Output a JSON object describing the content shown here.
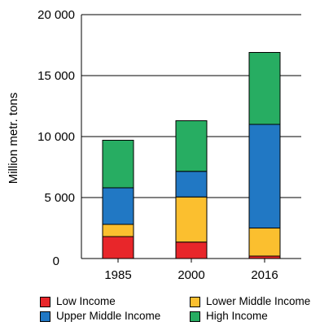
{
  "chart_data": {
    "type": "bar",
    "stacked": true,
    "categories": [
      "1985",
      "2000",
      "2016"
    ],
    "ylabel": "Million metr. tons",
    "ylim": [
      0,
      20000
    ],
    "yticks": [
      0,
      5000,
      10000,
      15000,
      20000
    ],
    "ytick_labels": [
      "0",
      "5 000",
      "10 000",
      "15 000",
      "20 000"
    ],
    "grid": false,
    "legend_position": "bottom",
    "series": [
      {
        "name": "Low Income",
        "color": "#e8262a",
        "values": [
          1800,
          1350,
          200
        ]
      },
      {
        "name": "Lower Middle Income",
        "color": "#fbbf2f",
        "values": [
          1000,
          3700,
          2300
        ]
      },
      {
        "name": "Upper Middle Income",
        "color": "#2178c4",
        "values": [
          3000,
          2100,
          8500
        ]
      },
      {
        "name": "High Income",
        "color": "#27ad62",
        "values": [
          3900,
          4150,
          5900
        ]
      }
    ]
  }
}
